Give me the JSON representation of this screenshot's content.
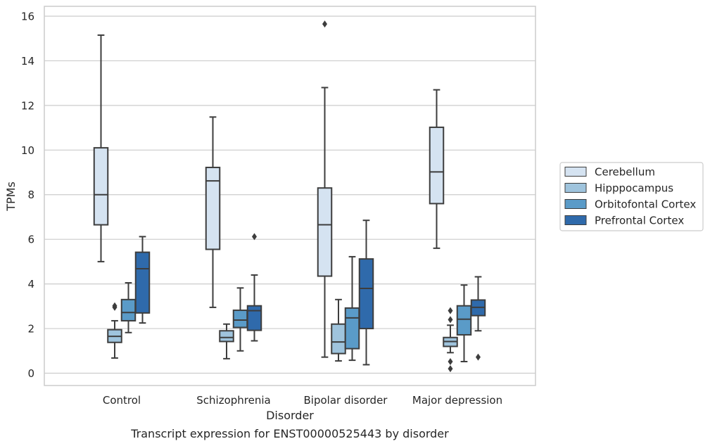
{
  "caption": "Transcript expression for ENST00000525443 by disorder",
  "chart_data": {
    "type": "box",
    "xlabel": "Disorder",
    "ylabel": "TPMs",
    "ylim": [
      -0.5,
      16.4
    ],
    "yticks": [
      0,
      2,
      4,
      6,
      8,
      10,
      12,
      14,
      16
    ],
    "grid": "horizontal",
    "legend_placement": "right",
    "categories": [
      "Control",
      "Schizophrenia",
      "Bipolar disorder",
      "Major depression"
    ],
    "series": [
      {
        "name": "Cerebellum",
        "color": "#d5e3f1",
        "boxes": [
          {
            "whisker_low": 5.0,
            "q1": 6.65,
            "median": 8.0,
            "q3": 10.1,
            "whisker_high": 15.15,
            "outliers": []
          },
          {
            "whisker_low": 2.95,
            "q1": 5.55,
            "median": 8.62,
            "q3": 9.22,
            "whisker_high": 11.48,
            "outliers": []
          },
          {
            "whisker_low": 0.72,
            "q1": 4.35,
            "median": 6.65,
            "q3": 8.3,
            "whisker_high": 12.8,
            "outliers": [
              15.65
            ]
          },
          {
            "whisker_low": 5.6,
            "q1": 7.6,
            "median": 9.02,
            "q3": 11.02,
            "whisker_high": 12.7,
            "outliers": []
          }
        ]
      },
      {
        "name": "Hipppocampus",
        "color": "#9fc4dd",
        "boxes": [
          {
            "whisker_low": 0.68,
            "q1": 1.38,
            "median": 1.65,
            "q3": 1.95,
            "whisker_high": 2.35,
            "outliers": [
              2.95,
              3.02
            ]
          },
          {
            "whisker_low": 0.65,
            "q1": 1.42,
            "median": 1.6,
            "q3": 1.9,
            "whisker_high": 2.2,
            "outliers": []
          },
          {
            "whisker_low": 0.55,
            "q1": 0.88,
            "median": 1.4,
            "q3": 2.2,
            "whisker_high": 3.3,
            "outliers": []
          },
          {
            "whisker_low": 0.92,
            "q1": 1.2,
            "median": 1.42,
            "q3": 1.6,
            "whisker_high": 2.15,
            "outliers": [
              0.2,
              0.52,
              2.4,
              2.8
            ]
          }
        ]
      },
      {
        "name": "Orbitofontal Cortex",
        "color": "#5a9bc8",
        "boxes": [
          {
            "whisker_low": 1.82,
            "q1": 2.35,
            "median": 2.72,
            "q3": 3.3,
            "whisker_high": 4.05,
            "outliers": []
          },
          {
            "whisker_low": 1.0,
            "q1": 2.05,
            "median": 2.38,
            "q3": 2.82,
            "whisker_high": 3.82,
            "outliers": []
          },
          {
            "whisker_low": 0.58,
            "q1": 1.1,
            "median": 2.48,
            "q3": 2.92,
            "whisker_high": 5.22,
            "outliers": []
          },
          {
            "whisker_low": 0.52,
            "q1": 1.72,
            "median": 2.42,
            "q3": 3.02,
            "whisker_high": 3.95,
            "outliers": []
          }
        ]
      },
      {
        "name": "Prefrontal Cortex",
        "color": "#2f6aab",
        "boxes": [
          {
            "whisker_low": 2.25,
            "q1": 2.7,
            "median": 4.68,
            "q3": 5.42,
            "whisker_high": 6.12,
            "outliers": []
          },
          {
            "whisker_low": 1.45,
            "q1": 1.92,
            "median": 2.8,
            "q3": 3.02,
            "whisker_high": 4.4,
            "outliers": [
              6.12
            ]
          },
          {
            "whisker_low": 0.38,
            "q1": 2.0,
            "median": 3.8,
            "q3": 5.12,
            "whisker_high": 6.85,
            "outliers": []
          },
          {
            "whisker_low": 1.9,
            "q1": 2.58,
            "median": 2.95,
            "q3": 3.28,
            "whisker_high": 4.32,
            "outliers": [
              0.72
            ]
          }
        ]
      }
    ]
  }
}
